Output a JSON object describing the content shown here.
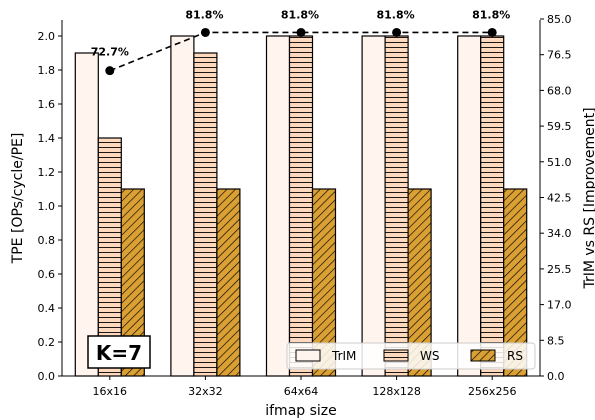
{
  "chart_data": {
    "type": "bar",
    "categories": [
      "16x16",
      "32x32",
      "64x64",
      "128x128",
      "256x256"
    ],
    "series": [
      {
        "name": "TrIM",
        "values": [
          1.9,
          2.0,
          2.0,
          2.0,
          2.0
        ],
        "color": "#fff5ee",
        "hatch": "none"
      },
      {
        "name": "WS",
        "values": [
          1.4,
          1.9,
          2.0,
          2.0,
          2.0
        ],
        "color": "#ffd9bd",
        "hatch": "horizontal"
      },
      {
        "name": "RS",
        "values": [
          1.1,
          1.1,
          1.1,
          1.1,
          1.1
        ],
        "color": "#dba033",
        "hatch": "diagonal"
      }
    ],
    "improvement": {
      "values": [
        72.7,
        81.8,
        81.8,
        81.8,
        81.8
      ],
      "labels": [
        "72.7%",
        "81.8%",
        "81.8%",
        "81.8%",
        "81.8%"
      ],
      "style": "dashed line with dots"
    },
    "xlabel": "ifmap size",
    "ylabel": "TPE [OPs/cycle/PE]",
    "y2label": "TrIM vs RS [Improvement]",
    "ylim": [
      0,
      2.1
    ],
    "y2lim": [
      0,
      85
    ],
    "yticks": [
      "0.0",
      "0.2",
      "0.4",
      "0.6",
      "0.8",
      "1.0",
      "1.2",
      "1.4",
      "1.6",
      "1.8",
      "2.0"
    ],
    "y2ticks": [
      "0.0",
      "8.5",
      "17.0",
      "25.5",
      "34.0",
      "42.5",
      "51.0",
      "59.5",
      "68.0",
      "76.5",
      "85.0"
    ],
    "annotation_box": "K=7",
    "legend_placement": "bottom-right",
    "grid": false
  }
}
